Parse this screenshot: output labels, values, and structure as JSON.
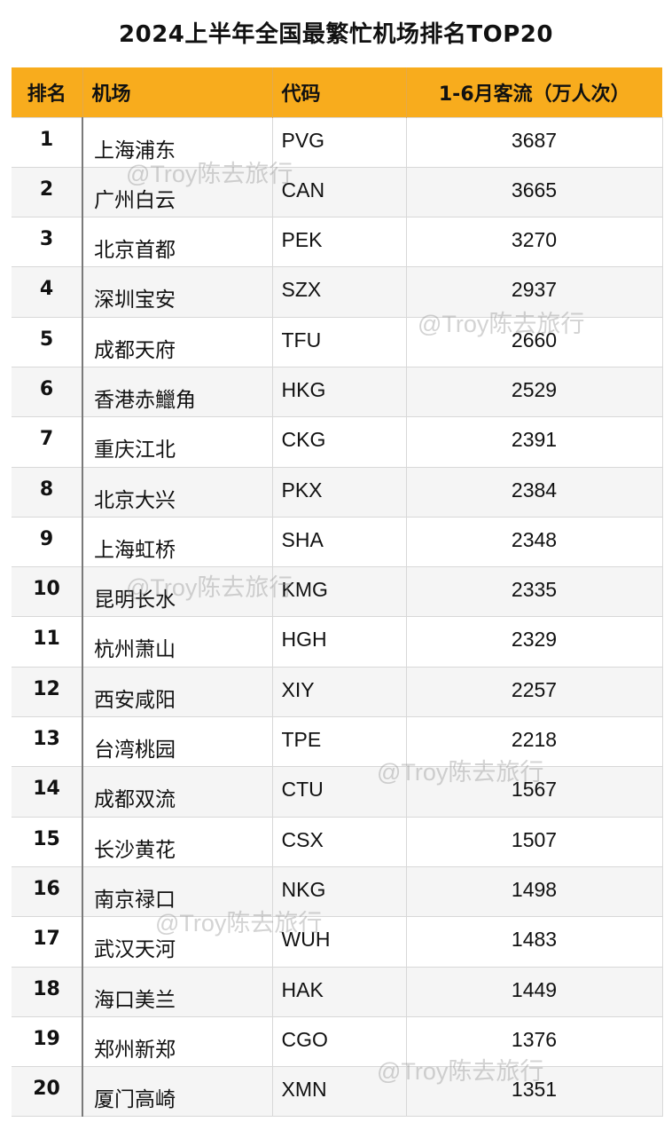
{
  "title": "2024上半年全国最繁忙机场排名TOP20",
  "columns": [
    "排名",
    "机场",
    "代码",
    "1-6月客流（万人次）"
  ],
  "rows": [
    {
      "rank": "1",
      "airport": "上海浦东",
      "code": "PVG",
      "pax": "3687"
    },
    {
      "rank": "2",
      "airport": "广州白云",
      "code": "CAN",
      "pax": "3665"
    },
    {
      "rank": "3",
      "airport": "北京首都",
      "code": "PEK",
      "pax": "3270"
    },
    {
      "rank": "4",
      "airport": "深圳宝安",
      "code": "SZX",
      "pax": "2937"
    },
    {
      "rank": "5",
      "airport": "成都天府",
      "code": "TFU",
      "pax": "2660"
    },
    {
      "rank": "6",
      "airport": "香港赤鱲角",
      "code": "HKG",
      "pax": "2529"
    },
    {
      "rank": "7",
      "airport": "重庆江北",
      "code": "CKG",
      "pax": "2391"
    },
    {
      "rank": "8",
      "airport": "北京大兴",
      "code": "PKX",
      "pax": "2384"
    },
    {
      "rank": "9",
      "airport": "上海虹桥",
      "code": "SHA",
      "pax": "2348"
    },
    {
      "rank": "10",
      "airport": "昆明长水",
      "code": "KMG",
      "pax": "2335"
    },
    {
      "rank": "11",
      "airport": "杭州萧山",
      "code": "HGH",
      "pax": "2329"
    },
    {
      "rank": "12",
      "airport": "西安咸阳",
      "code": "XIY",
      "pax": "2257"
    },
    {
      "rank": "13",
      "airport": "台湾桃园",
      "code": "TPE",
      "pax": "2218"
    },
    {
      "rank": "14",
      "airport": "成都双流",
      "code": "CTU",
      "pax": "1567"
    },
    {
      "rank": "15",
      "airport": "长沙黄花",
      "code": "CSX",
      "pax": "1507"
    },
    {
      "rank": "16",
      "airport": "南京禄口",
      "code": "NKG",
      "pax": "1498"
    },
    {
      "rank": "17",
      "airport": "武汉天河",
      "code": "WUH",
      "pax": "1483"
    },
    {
      "rank": "18",
      "airport": "海口美兰",
      "code": "HAK",
      "pax": "1449"
    },
    {
      "rank": "19",
      "airport": "郑州新郑",
      "code": "CGO",
      "pax": "1376"
    },
    {
      "rank": "20",
      "airport": "厦门高崎",
      "code": "XMN",
      "pax": "1351"
    }
  ],
  "watermark": "@Troy陈去旅行",
  "colors": {
    "header_bg": "#f8ac1d",
    "stripe": "#f5f5f5"
  }
}
